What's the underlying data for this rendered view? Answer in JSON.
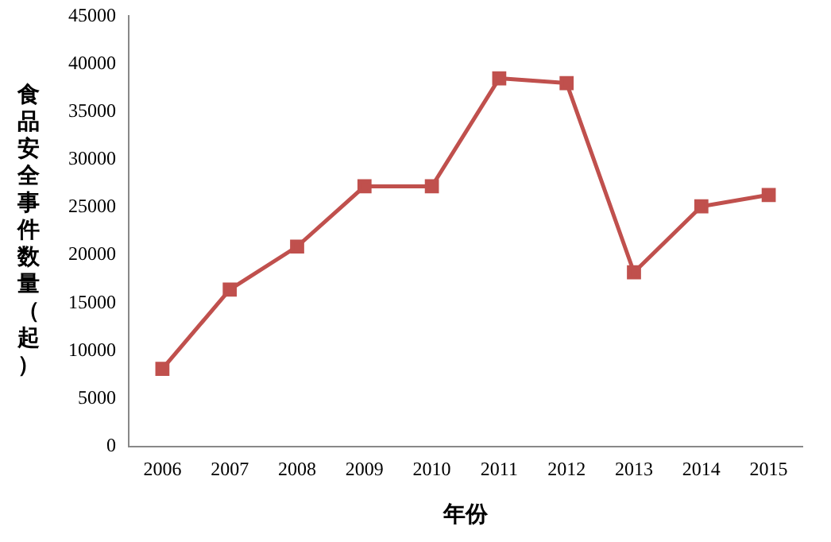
{
  "chart_data": {
    "type": "line",
    "xlabel": "年份",
    "ylabel": "食品安全事件数量（起）",
    "categories": [
      "2006",
      "2007",
      "2008",
      "2009",
      "2010",
      "2011",
      "2012",
      "2013",
      "2014",
      "2015"
    ],
    "series": [
      {
        "color": "#c0504d",
        "values": [
          8100,
          16400,
          20900,
          27200,
          27200,
          38500,
          38000,
          18200,
          25100,
          26300
        ]
      }
    ],
    "ylim": [
      0,
      45000
    ],
    "yticks": [
      0,
      5000,
      10000,
      15000,
      20000,
      25000,
      30000,
      35000,
      40000,
      45000
    ],
    "grid": false,
    "legend": false,
    "marker": "square",
    "line_style": "solid"
  }
}
